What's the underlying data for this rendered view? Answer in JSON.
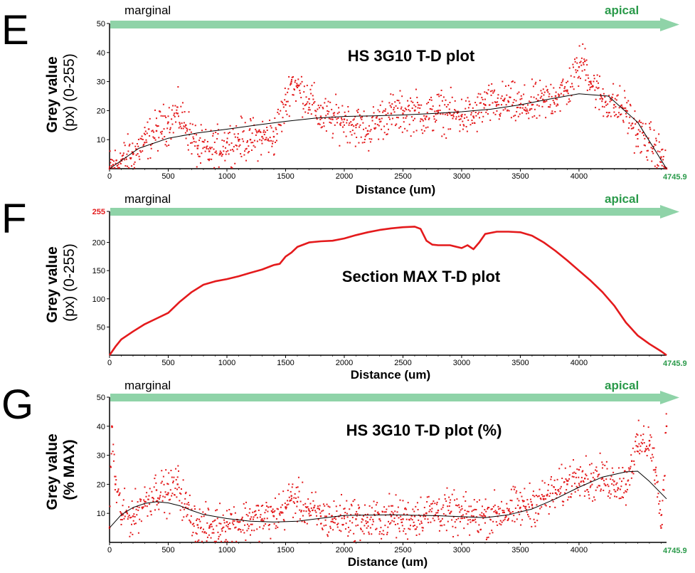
{
  "panels": [
    {
      "letter": "E",
      "marginal_label": "marginal",
      "apical_label": "apical",
      "ylabel_bold": "Grey value",
      "ylabel_sub": "(px) (0-255)",
      "top_tick_label": "50",
      "end_label": "4745.9",
      "chart_data": {
        "type": "scatter",
        "title": "HS 3G10 T-D plot",
        "xlabel": "Distance (um)",
        "ylabel": "Grey value (px) (0-255)",
        "xlim": [
          0,
          4745.9
        ],
        "ylim": [
          0,
          50
        ],
        "x_ticks": [
          0,
          500,
          1000,
          1500,
          2000,
          2500,
          3000,
          3500,
          4000
        ],
        "y_ticks": [
          10,
          20,
          30,
          40
        ],
        "grid": false,
        "trend_line": true,
        "series": [
          {
            "color": "#e41a1c",
            "x": [
              0,
              100,
              200,
              300,
              400,
              500,
              580,
              650,
              750,
              850,
              1000,
              1100,
              1200,
              1300,
              1400,
              1500,
              1550,
              1600,
              1700,
              1800,
              1900,
              2000,
              2100,
              2200,
              2300,
              2400,
              2500,
              2600,
              2700,
              2800,
              2900,
              3000,
              3100,
              3200,
              3300,
              3400,
              3500,
              3600,
              3700,
              3800,
              3900,
              4000,
              4050,
              4100,
              4200,
              4300,
              4400,
              4500,
              4600,
              4700,
              4745.9
            ],
            "y": [
              0,
              3,
              5,
              9,
              13,
              16,
              19,
              15,
              7,
              6,
              9,
              10,
              10,
              11,
              11,
              22,
              30,
              28,
              24,
              18,
              17,
              17,
              15,
              13,
              17,
              19,
              19,
              20,
              18,
              20,
              19,
              18,
              18,
              22,
              22,
              23,
              21,
              22,
              23,
              25,
              27,
              35,
              37,
              30,
              24,
              22,
              20,
              12,
              9,
              4,
              0
            ]
          }
        ],
        "trend": {
          "x": [
            0,
            250,
            500,
            750,
            1000,
            1250,
            1500,
            1750,
            2000,
            2250,
            2500,
            2750,
            3000,
            3250,
            3500,
            3750,
            4000,
            4250,
            4500,
            4745.9
          ],
          "y": [
            0,
            7,
            10.5,
            12.3,
            13.6,
            15,
            16.3,
            17.4,
            18,
            18.2,
            18.5,
            19,
            19.6,
            20.5,
            22,
            24,
            25.8,
            25,
            16,
            0
          ]
        }
      }
    },
    {
      "letter": "F",
      "marginal_label": "marginal",
      "apical_label": "apical",
      "ylabel_bold": "Grey value",
      "ylabel_sub": "(px) (0-255)",
      "top_tick_label": "255",
      "end_label": "4745.9",
      "chart_data": {
        "type": "line",
        "title": "Section MAX T-D plot",
        "xlabel": "Distance (um)",
        "ylabel": "Grey value (px) (0-255)",
        "xlim": [
          0,
          4745.9
        ],
        "ylim": [
          0,
          255
        ],
        "x_ticks": [
          0,
          500,
          1000,
          1500,
          2000,
          2500,
          3000,
          3500,
          4000
        ],
        "y_ticks": [
          50,
          100,
          150,
          200
        ],
        "grid": false,
        "trend_line": false,
        "series": [
          {
            "color": "#e41a1c",
            "x": [
              0,
              50,
              100,
              200,
              300,
              400,
              500,
              600,
              700,
              800,
              900,
              1000,
              1100,
              1200,
              1300,
              1400,
              1450,
              1500,
              1550,
              1600,
              1700,
              1800,
              1900,
              2000,
              2100,
              2200,
              2300,
              2400,
              2500,
              2600,
              2650,
              2700,
              2750,
              2800,
              2900,
              3000,
              3050,
              3100,
              3150,
              3200,
              3300,
              3400,
              3500,
              3600,
              3700,
              3800,
              3900,
              4000,
              4100,
              4200,
              4300,
              4400,
              4500,
              4600,
              4700,
              4745.9
            ],
            "y": [
              0,
              15,
              28,
              42,
              55,
              65,
              75,
              95,
              112,
              125,
              131,
              135,
              140,
              146,
              152,
              160,
              162,
              175,
              182,
              192,
              200,
              202,
              203,
              207,
              213,
              218,
              222,
              225,
              227,
              228,
              224,
              203,
              196,
              195,
              195,
              190,
              195,
              188,
              200,
              215,
              219,
              219,
              218,
              212,
              200,
              185,
              168,
              150,
              132,
              112,
              88,
              58,
              35,
              20,
              7,
              0
            ]
          }
        ]
      }
    },
    {
      "letter": "G",
      "marginal_label": "marginal",
      "apical_label": "apical",
      "ylabel_bold": "Grey value",
      "ylabel_sub": "(% MAX)",
      "top_tick_label": "50",
      "end_label": "4745.9",
      "chart_data": {
        "type": "scatter",
        "title": "HS 3G10 T-D plot (%)",
        "xlabel": "Distance (um)",
        "ylabel": "Grey value (% MAX)",
        "xlim": [
          0,
          4745.9
        ],
        "ylim": [
          0,
          50
        ],
        "x_ticks": [
          0,
          500,
          1000,
          1500,
          2000,
          2500,
          3000,
          3500,
          4000
        ],
        "y_ticks": [
          10,
          20,
          30,
          40
        ],
        "grid": false,
        "trend_line": true,
        "series": [
          {
            "color": "#e41a1c",
            "x": [
              0,
              20,
              50,
              100,
              200,
              300,
              400,
              500,
              580,
              650,
              750,
              850,
              1000,
              1100,
              1200,
              1300,
              1400,
              1500,
              1550,
              1600,
              1700,
              1800,
              1900,
              2000,
              2100,
              2200,
              2300,
              2400,
              2500,
              2600,
              2700,
              2800,
              2900,
              3000,
              3100,
              3200,
              3300,
              3400,
              3500,
              3600,
              3700,
              3800,
              3900,
              4000,
              4050,
              4100,
              4200,
              4300,
              4400,
              4450,
              4500,
              4600,
              4650,
              4700,
              4745.9
            ],
            "y": [
              5,
              40,
              20,
              10,
              9,
              14,
              18,
              17,
              20,
              12,
              6,
              5,
              7,
              7,
              8,
              8,
              9,
              12,
              16,
              14,
              11,
              9,
              8,
              9,
              8,
              7,
              8,
              9,
              8,
              9,
              10,
              11,
              10,
              9,
              9,
              9,
              10,
              11,
              12,
              13,
              15,
              17,
              20,
              25,
              22,
              21,
              22,
              21,
              20,
              28,
              33,
              35,
              25,
              5,
              40
            ]
          }
        ],
        "trend": {
          "x": [
            0,
            100,
            200,
            300,
            400,
            500,
            600,
            700,
            800,
            1000,
            1200,
            1400,
            1600,
            1800,
            2000,
            2400,
            2800,
            3200,
            3400,
            3600,
            3800,
            4000,
            4200,
            4400,
            4500,
            4600,
            4745.9
          ],
          "y": [
            5,
            9.5,
            12,
            13.4,
            14,
            13.6,
            12.6,
            11,
            9.6,
            8.2,
            7.3,
            7,
            7.3,
            8.3,
            9.3,
            9.5,
            9.2,
            8.5,
            9.5,
            11.5,
            15,
            19,
            22.5,
            24.3,
            24.5,
            21,
            15
          ]
        }
      }
    }
  ]
}
